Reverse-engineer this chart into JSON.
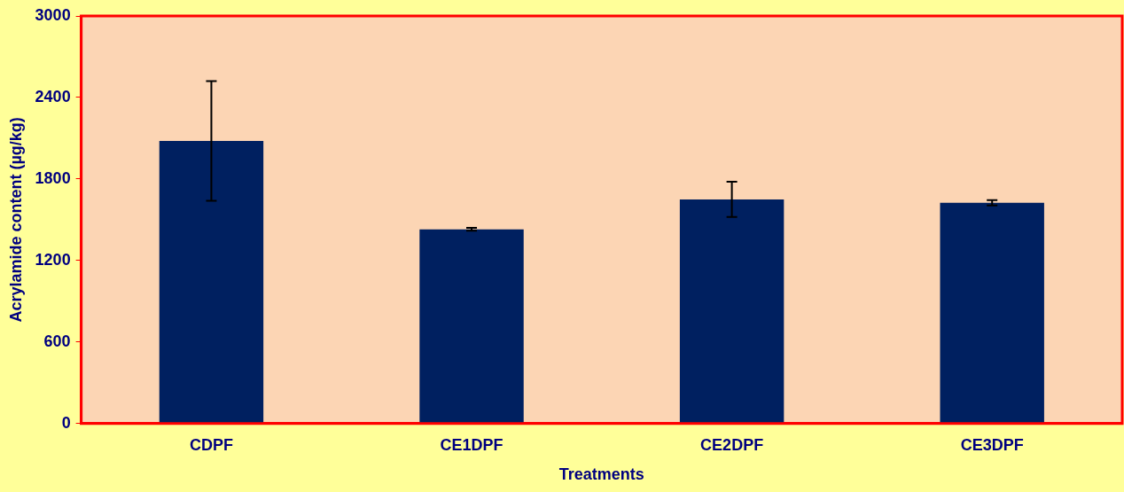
{
  "chart_data": {
    "type": "bar",
    "xlabel": "Treatments",
    "ylabel": "Acrylamide content (µg/kg)",
    "categories": [
      "CDPF",
      "CE1DPF",
      "CE2DPF",
      "CE3DPF"
    ],
    "values": [
      2080,
      1430,
      1650,
      1625
    ],
    "errors": [
      440,
      10,
      130,
      20
    ],
    "color": "#002060",
    "ylim": [
      0,
      3000
    ],
    "yticks": [
      0,
      600,
      1200,
      1800,
      2400,
      3000
    ],
    "grid": false,
    "legend": false
  }
}
